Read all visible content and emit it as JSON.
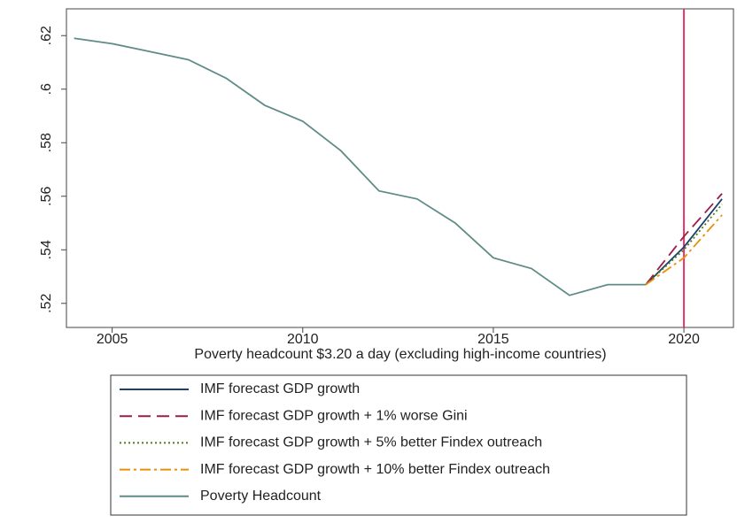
{
  "chart_data": {
    "type": "line",
    "x_label": "Poverty headcount $3.20 a day (excluding high-income countries)",
    "xlim": [
      2003.8,
      2021.3
    ],
    "ylim": [
      0.511,
      0.63
    ],
    "xticks": [
      2005,
      2010,
      2015,
      2020
    ],
    "yticks": [
      {
        "value": 0.52,
        "label": ".52"
      },
      {
        "value": 0.54,
        "label": ".54"
      },
      {
        "value": 0.56,
        "label": ".56"
      },
      {
        "value": 0.58,
        "label": ".58"
      },
      {
        "value": 0.6,
        "label": ".6"
      },
      {
        "value": 0.62,
        "label": ".62"
      }
    ],
    "vline": {
      "value": 2020,
      "color": "#e8336b"
    },
    "series": [
      {
        "name": "IMF forecast GDP growth",
        "color": "#1f3f6e",
        "dash": "solid",
        "x": [
          2019,
          2020,
          2021
        ],
        "values": [
          0.527,
          0.541,
          0.559
        ]
      },
      {
        "name": "IMF forecast GDP growth + 1% worse Gini",
        "color": "#9b1f45",
        "dash": "dashed",
        "x": [
          2019,
          2020,
          2021
        ],
        "values": [
          0.527,
          0.545,
          0.561
        ]
      },
      {
        "name": "IMF forecast GDP growth + 5% better Findex outreach",
        "color": "#4e7d1c",
        "dash": "dotted",
        "x": [
          2019,
          2020,
          2021
        ],
        "values": [
          0.527,
          0.54,
          0.557
        ]
      },
      {
        "name": "IMF forecast GDP growth + 10% better Findex outreach",
        "color": "#e8900a",
        "dash": "dashdot",
        "x": [
          2019,
          2020,
          2021
        ],
        "values": [
          0.527,
          0.537,
          0.553
        ]
      },
      {
        "name": "Poverty Headcount",
        "color": "#5f8c86",
        "dash": "solid",
        "x": [
          2004,
          2005,
          2006,
          2007,
          2008,
          2009,
          2010,
          2011,
          2012,
          2013,
          2014,
          2015,
          2016,
          2017,
          2018,
          2019
        ],
        "values": [
          0.619,
          0.617,
          0.614,
          0.611,
          0.604,
          0.594,
          0.588,
          0.577,
          0.562,
          0.559,
          0.55,
          0.537,
          0.533,
          0.523,
          0.527,
          0.527
        ]
      }
    ]
  }
}
